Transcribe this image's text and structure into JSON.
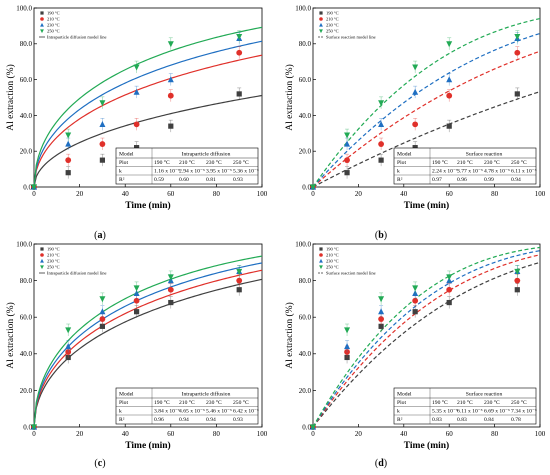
{
  "chart_data": [
    {
      "panel": "a",
      "type": "scatter",
      "xlabel": "Time (min)",
      "ylabel": "Al extraction (%)",
      "xlim": [
        0,
        100
      ],
      "ylim": [
        0,
        100
      ],
      "xticks": [
        "0",
        "20",
        "40",
        "60",
        "80",
        "100"
      ],
      "yticks": [
        "0.0",
        "20.0",
        "40.0",
        "60.0",
        "80.0",
        "100.0"
      ],
      "legend_position": "top-left",
      "model": "diffusion",
      "model_line_label": "Intraparticle diffusion model line",
      "series": [
        {
          "name": "190 °C",
          "color": "#404040",
          "marker": "square",
          "x": [
            0,
            15,
            30,
            45,
            60,
            90
          ],
          "y": [
            0,
            8,
            15,
            22,
            34,
            52
          ],
          "k": 0.00116,
          "r2": 0.59
        },
        {
          "name": "210 °C",
          "color": "#e0302a",
          "marker": "circle",
          "x": [
            0,
            15,
            30,
            45,
            60,
            90
          ],
          "y": [
            0,
            15,
            24,
            35,
            51,
            75
          ],
          "k": 0.00294,
          "r2": 0.6
        },
        {
          "name": "230 °C",
          "color": "#1f6fc2",
          "marker": "triangle-up",
          "x": [
            0,
            15,
            30,
            45,
            60,
            90
          ],
          "y": [
            0,
            24,
            35,
            53,
            60,
            83
          ],
          "k": 0.00395,
          "r2": 0.81
        },
        {
          "name": "250 °C",
          "color": "#22aa55",
          "marker": "triangle-down",
          "x": [
            0,
            15,
            30,
            45,
            60,
            90
          ],
          "y": [
            0,
            29,
            47,
            67,
            80,
            84
          ],
          "k": 0.00536,
          "r2": 0.93
        }
      ],
      "table": {
        "title": "Intraparticle diffusion",
        "rows": [
          [
            "Model",
            "",
            "",
            "",
            ""
          ],
          [
            "Plot",
            "190 °C",
            "210 °C",
            "230 °C",
            "250 °C"
          ],
          [
            "k",
            "1.16 x 10⁻³",
            "2.94 x 10⁻³",
            "3.95 x 10⁻³",
            "5.36 x 10⁻³"
          ],
          [
            "R²",
            "0.59",
            "0.60",
            "0.81",
            "0.93"
          ]
        ]
      },
      "label": "(a)"
    },
    {
      "panel": "b",
      "type": "scatter",
      "xlabel": "Time (min)",
      "ylabel": "Al extraction (%)",
      "xlim": [
        0,
        100
      ],
      "ylim": [
        0,
        100
      ],
      "xticks": [
        "0",
        "20",
        "40",
        "60",
        "80",
        "100"
      ],
      "yticks": [
        "0.0",
        "20.0",
        "40.0",
        "60.0",
        "80.0",
        "100.0"
      ],
      "legend_position": "top-left",
      "model": "surface",
      "model_line_label": "Surface reaction model line",
      "series": [
        {
          "name": "190 °C",
          "color": "#404040",
          "marker": "square",
          "x": [
            0,
            15,
            30,
            45,
            60,
            90
          ],
          "y": [
            0,
            8,
            15,
            22,
            34,
            52
          ],
          "k": 0.00224,
          "r2": 0.97
        },
        {
          "name": "210 °C",
          "color": "#e0302a",
          "marker": "circle",
          "x": [
            0,
            15,
            30,
            45,
            60,
            90
          ],
          "y": [
            0,
            15,
            24,
            35,
            51,
            75
          ],
          "k": 0.00377,
          "r2": 0.96
        },
        {
          "name": "230 °C",
          "color": "#1f6fc2",
          "marker": "triangle-up",
          "x": [
            0,
            15,
            30,
            45,
            60,
            90
          ],
          "y": [
            0,
            24,
            35,
            53,
            60,
            83
          ],
          "k": 0.00478,
          "r2": 0.99
        },
        {
          "name": "250 °C",
          "color": "#22aa55",
          "marker": "triangle-down",
          "x": [
            0,
            15,
            30,
            45,
            60,
            90
          ],
          "y": [
            0,
            29,
            47,
            67,
            80,
            84
          ],
          "k": 0.00611,
          "r2": 0.94
        }
      ],
      "table": {
        "title": "Surface reaction",
        "rows": [
          [
            "Model",
            "",
            "",
            "",
            ""
          ],
          [
            "Plot",
            "190 °C",
            "210 °C",
            "230 °C",
            "250 °C"
          ],
          [
            "k",
            "2.24 x 10⁻³",
            "3.77 x 10⁻³",
            "4.78 x 10⁻³",
            "6.11 x 10⁻³"
          ],
          [
            "R²",
            "0.97",
            "0.96",
            "0.99",
            "0.94"
          ]
        ]
      },
      "label": "(b)"
    },
    {
      "panel": "c",
      "type": "scatter",
      "xlabel": "Time (min)",
      "ylabel": "Al extraction (%)",
      "xlim": [
        0,
        100
      ],
      "ylim": [
        0,
        100
      ],
      "xticks": [
        "0",
        "20",
        "40",
        "60",
        "80",
        "100"
      ],
      "yticks": [
        "0.0",
        "20.0",
        "40.0",
        "60.0",
        "80.0",
        "100.0"
      ],
      "legend_position": "top-left",
      "model": "diffusion",
      "model_line_label": "Intraparticle diffusion model line",
      "series": [
        {
          "name": "190 °C",
          "color": "#404040",
          "marker": "square",
          "x": [
            0,
            15,
            30,
            45,
            60,
            90
          ],
          "y": [
            0,
            38,
            55,
            63,
            68,
            75
          ],
          "k": 0.00384,
          "r2": 0.96
        },
        {
          "name": "210 °C",
          "color": "#e0302a",
          "marker": "circle",
          "x": [
            0,
            15,
            30,
            45,
            60,
            90
          ],
          "y": [
            0,
            41,
            59,
            69,
            75,
            80
          ],
          "k": 0.00465,
          "r2": 0.94
        },
        {
          "name": "230 °C",
          "color": "#1f6fc2",
          "marker": "triangle-up",
          "x": [
            0,
            15,
            30,
            45,
            60,
            90
          ],
          "y": [
            0,
            44,
            63,
            73,
            80,
            85
          ],
          "k": 0.00546,
          "r2": 0.94
        },
        {
          "name": "250 °C",
          "color": "#22aa55",
          "marker": "triangle-down",
          "x": [
            0,
            15,
            30,
            45,
            60,
            90
          ],
          "y": [
            0,
            53,
            70,
            76,
            82,
            85
          ],
          "k": 0.00642,
          "r2": 0.93
        }
      ],
      "table": {
        "title": "Intraparticle diffusion",
        "rows": [
          [
            "Model",
            "",
            "",
            "",
            ""
          ],
          [
            "Plot",
            "190 °C",
            "210 °C",
            "230 °C",
            "250 °C"
          ],
          [
            "k",
            "3.84 x 10⁻³",
            "4.65 x 10⁻³",
            "5.46 x 10⁻³",
            "6.42 x 10⁻³"
          ],
          [
            "R²",
            "0.96",
            "0.94",
            "0.94",
            "0.93"
          ]
        ]
      },
      "label": "(c)"
    },
    {
      "panel": "d",
      "type": "scatter",
      "xlabel": "Time (min)",
      "ylabel": "Al extraction (%)",
      "xlim": [
        0,
        100
      ],
      "ylim": [
        0,
        100
      ],
      "xticks": [
        "0",
        "20",
        "40",
        "60",
        "80",
        "100"
      ],
      "yticks": [
        "0.0",
        "20.0",
        "40.0",
        "60.0",
        "80.0",
        "100.0"
      ],
      "legend_position": "top-left",
      "model": "surface",
      "model_line_label": "Surface reaction model line",
      "series": [
        {
          "name": "190 °C",
          "color": "#404040",
          "marker": "square",
          "x": [
            0,
            15,
            30,
            45,
            60,
            90
          ],
          "y": [
            0,
            38,
            55,
            63,
            68,
            75
          ],
          "k": 0.00535,
          "r2": 0.83
        },
        {
          "name": "210 °C",
          "color": "#e0302a",
          "marker": "circle",
          "x": [
            0,
            15,
            30,
            45,
            60,
            90
          ],
          "y": [
            0,
            41,
            59,
            69,
            75,
            80
          ],
          "k": 0.00611,
          "r2": 0.83
        },
        {
          "name": "230 °C",
          "color": "#1f6fc2",
          "marker": "triangle-up",
          "x": [
            0,
            15,
            30,
            45,
            60,
            90
          ],
          "y": [
            0,
            44,
            63,
            73,
            80,
            85
          ],
          "k": 0.00669,
          "r2": 0.84
        },
        {
          "name": "250 °C",
          "color": "#22aa55",
          "marker": "triangle-down",
          "x": [
            0,
            15,
            30,
            45,
            60,
            90
          ],
          "y": [
            0,
            53,
            70,
            76,
            82,
            85
          ],
          "k": 0.00734,
          "r2": 0.78
        }
      ],
      "table": {
        "title": "Surface reaction",
        "rows": [
          [
            "Model",
            "",
            "",
            "",
            ""
          ],
          [
            "Plot",
            "190 °C",
            "210 °C",
            "230 °C",
            "250 °C"
          ],
          [
            "k",
            "5.35 x 10⁻³",
            "6.11 x 10⁻³",
            "6.69 x 10⁻³",
            "7.34 x 10⁻³"
          ],
          [
            "R²",
            "0.83",
            "0.83",
            "0.84",
            "0.78"
          ]
        ]
      },
      "label": "(d)"
    }
  ]
}
